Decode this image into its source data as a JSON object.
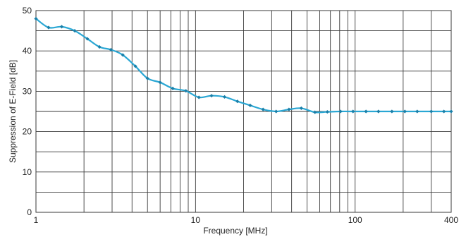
{
  "chart_data": {
    "type": "line",
    "title": "",
    "xlabel": "Frequency [MHz]",
    "ylabel": "Suppression of E-Field  [dB]",
    "x_scale": "log",
    "xlim": [
      1,
      400
    ],
    "ylim": [
      0,
      50
    ],
    "grid": true,
    "legend": "none",
    "x_tick_labels": [
      {
        "value": 1,
        "label": "1"
      },
      {
        "value": 10,
        "label": "10"
      },
      {
        "value": 100,
        "label": "100"
      },
      {
        "value": 400,
        "label": "400"
      }
    ],
    "y_tick_labels": [
      {
        "value": 0,
        "label": "0"
      },
      {
        "value": 10,
        "label": "10"
      },
      {
        "value": 20,
        "label": "20"
      },
      {
        "value": 30,
        "label": "30"
      },
      {
        "value": 40,
        "label": "40"
      },
      {
        "value": 50,
        "label": "50"
      }
    ],
    "series": [
      {
        "color": "#2aa7d4",
        "x": [
          1,
          1.2,
          1.45,
          1.75,
          2.1,
          2.5,
          2.95,
          3.5,
          4.2,
          5.0,
          6.0,
          7.2,
          8.7,
          10.5,
          12.6,
          15.2,
          18.3,
          22,
          26.5,
          32,
          38.5,
          46,
          56,
          67,
          81,
          97,
          117,
          140,
          170,
          205,
          245,
          300,
          360,
          400
        ],
        "y": [
          48,
          45.8,
          46,
          45,
          43,
          41,
          40.3,
          39,
          36.2,
          33.2,
          32.2,
          30.7,
          30.1,
          28.5,
          28.9,
          28.6,
          27.5,
          26.5,
          25.5,
          25,
          25.5,
          25.8,
          24.8,
          24.9,
          25,
          25,
          25,
          25,
          25,
          25,
          25,
          25,
          25,
          25
        ]
      }
    ]
  },
  "colors": {
    "line": "#2aa7d4",
    "marker": "#1a7fa8",
    "grid": "#3a3a3a",
    "background": "#ffffff"
  }
}
